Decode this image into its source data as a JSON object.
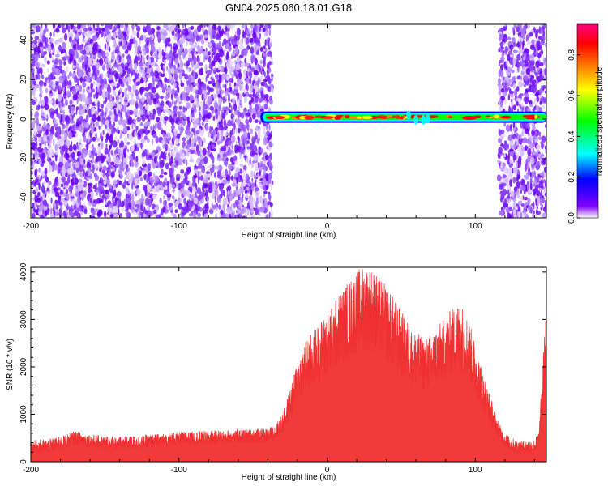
{
  "title": "GN04.2025.060.18.01.G18",
  "chart_data": [
    {
      "type": "heatmap",
      "xlabel": "Height of straight line (km)",
      "ylabel": "Frequency (Hz)",
      "xlim": [
        -200,
        148
      ],
      "ylim": [
        -50,
        48
      ],
      "xticks": [
        -200,
        -100,
        0,
        100
      ],
      "yticks": [
        -40,
        -20,
        0,
        20,
        40
      ],
      "noise_regions_km": [
        [
          -200,
          -37
        ],
        [
          116,
          148
        ]
      ],
      "signal_band": {
        "x_start_km": -45,
        "x_end_km": 148,
        "center_freq_hz": 1,
        "approx_amplitude": 0.9
      },
      "colorbar": {
        "label": "Normalized spectral amplitude",
        "range": [
          0,
          0.95
        ],
        "ticks": [
          "0.0",
          "0.2",
          "0.4",
          "0.6",
          "0.8"
        ],
        "colors": [
          "#ffffff",
          "#8000ff",
          "#0000ff",
          "#00ffff",
          "#00ff00",
          "#ffff00",
          "#ff8000",
          "#ff0000",
          "#ff0080"
        ]
      }
    },
    {
      "type": "line",
      "xlabel": "Height of straight line (km)",
      "ylabel": "SNR (10 * v/v)",
      "xlim": [
        -200,
        148
      ],
      "ylim": [
        0,
        4100
      ],
      "xticks": [
        -200,
        -100,
        0,
        100
      ],
      "yticks": [
        0,
        1000,
        2000,
        3000,
        4000
      ],
      "color": "#f03030",
      "series": [
        {
          "x": [
            -200,
            -190,
            -180,
            -170,
            -160,
            -150,
            -140,
            -130,
            -120,
            -110,
            -100,
            -90,
            -80,
            -70,
            -60,
            -50,
            -40,
            -35,
            -30,
            -25,
            -20,
            -15,
            -10,
            -5,
            0,
            5,
            10,
            15,
            20,
            25,
            30,
            35,
            40,
            45,
            50,
            55,
            60,
            65,
            70,
            75,
            80,
            85,
            90,
            95,
            100,
            105,
            110,
            115,
            120,
            125,
            130,
            135,
            140,
            143,
            146,
            148
          ],
          "values": [
            300,
            320,
            380,
            500,
            430,
            400,
            380,
            400,
            420,
            450,
            480,
            490,
            500,
            520,
            530,
            540,
            550,
            620,
            800,
            1200,
            1700,
            2000,
            2150,
            2300,
            2450,
            2650,
            2850,
            3000,
            3150,
            3250,
            3200,
            3050,
            2900,
            2700,
            2500,
            2300,
            2150,
            2050,
            2100,
            2250,
            2400,
            2550,
            2650,
            2400,
            1950,
            1500,
            1100,
            700,
            450,
            350,
            300,
            300,
            320,
            500,
            1800,
            2700
          ]
        }
      ]
    }
  ]
}
